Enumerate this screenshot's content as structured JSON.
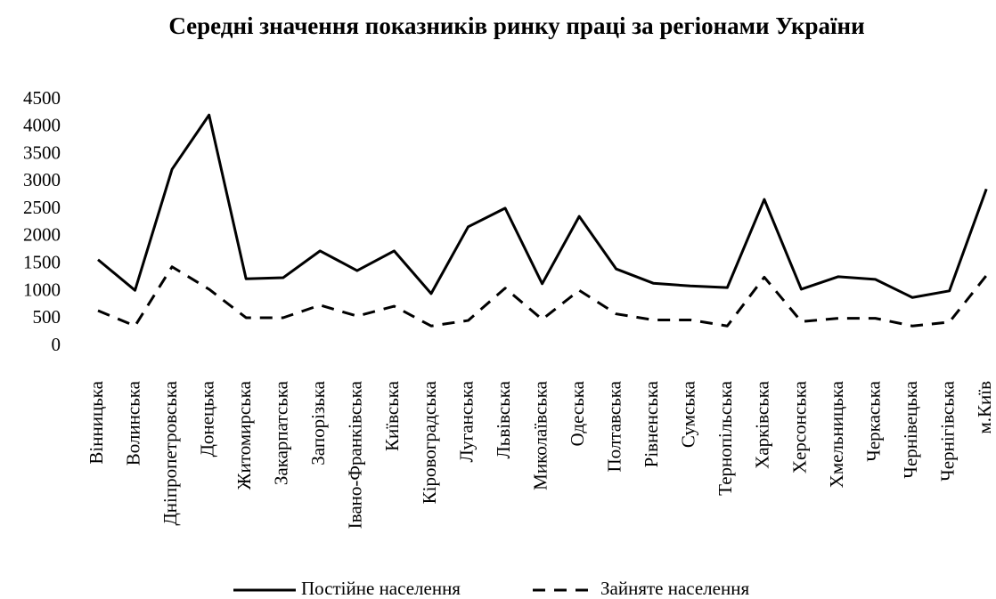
{
  "chart_data": {
    "type": "line",
    "title": "Середні значення показників ринку праці за регіонами України",
    "categories": [
      "Вінницька",
      "Волинська",
      "Дніпропетровська",
      "Донецька",
      "Житомирська",
      "Закарпатська",
      "Запорізька",
      "Івано-Франківська",
      "Київська",
      "Кіровоградська",
      "Луганська",
      "Львівська",
      "Миколаївська",
      "Одеська",
      "Полтавська",
      "Рівненська",
      "Сумська",
      "Тернопільська",
      "Харківська",
      "Херсонська",
      "Хмельницька",
      "Черкаська",
      "Чернівецька",
      "Чернігівська",
      "м.Київ"
    ],
    "series": [
      {
        "name": "Постійне населення",
        "color": "#000000",
        "dash": "solid",
        "values": [
          1580,
          1020,
          3230,
          4220,
          1230,
          1250,
          1740,
          1380,
          1740,
          960,
          2180,
          2520,
          1140,
          2370,
          1410,
          1150,
          1100,
          1070,
          2680,
          1040,
          1270,
          1220,
          890,
          1010,
          2870
        ]
      },
      {
        "name": "Зайняте населення",
        "color": "#000000",
        "dash": "dashed",
        "values": [
          650,
          370,
          1450,
          1040,
          520,
          520,
          750,
          550,
          730,
          370,
          470,
          1060,
          490,
          1020,
          590,
          480,
          480,
          370,
          1260,
          450,
          510,
          510,
          370,
          440,
          1290
        ]
      }
    ],
    "ylim": [
      0,
      4500
    ],
    "yticks": [
      0,
      500,
      1000,
      1500,
      2000,
      2500,
      3000,
      3500,
      4000,
      4500
    ],
    "grid": false,
    "legend": "bottom"
  }
}
